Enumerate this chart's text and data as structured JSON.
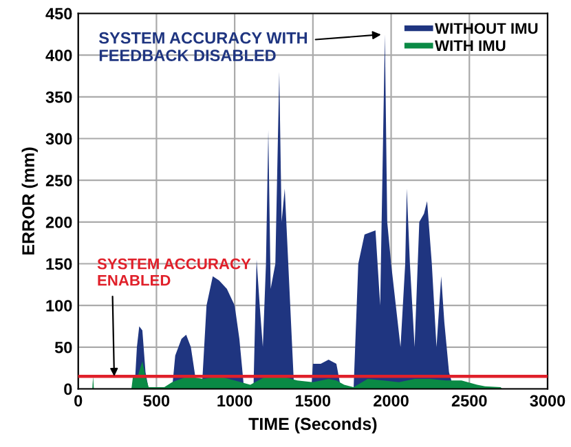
{
  "chart_data": {
    "type": "area",
    "xlabel": "TIME (Seconds)",
    "ylabel": "ERROR (mm)",
    "xlim": [
      0,
      3000
    ],
    "xticks": [
      0,
      500,
      1000,
      1500,
      2000,
      2500,
      3000
    ],
    "ylim": [
      0,
      450
    ],
    "yticks": [
      0,
      50,
      100,
      150,
      200,
      250,
      300,
      350,
      400,
      450
    ],
    "grid": true,
    "legend": "top right",
    "series": [
      {
        "name": "WITHOUT IMU",
        "color": "#1f3580",
        "x": [
          0,
          360,
          375,
          390,
          410,
          430,
          450,
          600,
          620,
          660,
          690,
          720,
          760,
          790,
          820,
          860,
          900,
          950,
          1000,
          1030,
          1060,
          1120,
          1140,
          1160,
          1180,
          1200,
          1215,
          1230,
          1260,
          1285,
          1300,
          1320,
          1335,
          1360,
          1380,
          1490,
          1500,
          1550,
          1600,
          1650,
          1680,
          1760,
          1790,
          1830,
          1900,
          1930,
          1960,
          1975,
          2000,
          2030,
          2060,
          2090,
          2100,
          2120,
          2150,
          2180,
          2210,
          2230,
          2260,
          2290,
          2320,
          2340,
          2370,
          2400
        ],
        "values": [
          0,
          0,
          50,
          75,
          70,
          20,
          0,
          0,
          40,
          60,
          65,
          50,
          0,
          0,
          100,
          135,
          130,
          120,
          100,
          60,
          0,
          0,
          155,
          100,
          50,
          150,
          310,
          120,
          150,
          380,
          200,
          240,
          180,
          80,
          0,
          0,
          30,
          30,
          35,
          30,
          0,
          0,
          150,
          185,
          190,
          100,
          425,
          200,
          150,
          100,
          50,
          150,
          240,
          150,
          50,
          200,
          210,
          225,
          150,
          50,
          135,
          80,
          20,
          0
        ]
      },
      {
        "name": "WITH IMU",
        "color": "#0a8a45",
        "x": [
          90,
          95,
          100,
          340,
          350,
          380,
          410,
          430,
          450,
          550,
          600,
          700,
          800,
          900,
          1000,
          1100,
          1200,
          1300,
          1400,
          1500,
          1600,
          1650,
          1700,
          1760,
          1850,
          1950,
          2050,
          2150,
          2250,
          2350,
          2450,
          2550,
          2600,
          2700,
          2710
        ],
        "values": [
          0,
          15,
          0,
          0,
          15,
          15,
          33,
          15,
          2,
          2,
          8,
          15,
          12,
          15,
          10,
          5,
          15,
          15,
          10,
          8,
          12,
          10,
          5,
          2,
          12,
          10,
          8,
          12,
          12,
          10,
          10,
          5,
          3,
          2,
          0
        ]
      }
    ],
    "ref_lines": [
      {
        "axis": "y",
        "value": 15,
        "color": "#e0202a"
      }
    ],
    "annotations": [
      {
        "text": "SYSTEM ACCURACY WITH\nFEEDBACK DISABLED",
        "x": 1960,
        "y": 425
      },
      {
        "text": "SYSTEM ACCURACY\nENABLED",
        "x": 230,
        "y": 15
      }
    ]
  }
}
